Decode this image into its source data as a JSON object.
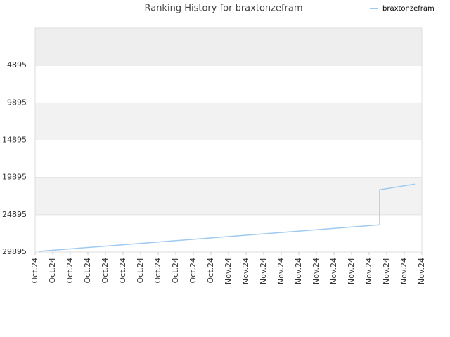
{
  "chart_data": {
    "type": "line",
    "title": "Ranking History for braxtonzefram",
    "x": [
      0.2,
      19.6,
      19.6,
      21.6
    ],
    "series": [
      {
        "name": "braxtonzefram",
        "color": "#9ec9f0",
        "values": [
          29800,
          26250,
          21550,
          20800
        ]
      }
    ],
    "xlim": [
      0,
      22
    ],
    "xticks": [
      {
        "value": 0,
        "label": "Oct.24"
      },
      {
        "value": 1,
        "label": "Oct.24"
      },
      {
        "value": 2,
        "label": "Oct.24"
      },
      {
        "value": 3,
        "label": "Oct.24"
      },
      {
        "value": 4,
        "label": "Oct.24"
      },
      {
        "value": 5,
        "label": "Oct.24"
      },
      {
        "value": 6,
        "label": "Oct.24"
      },
      {
        "value": 7,
        "label": "Oct.24"
      },
      {
        "value": 8,
        "label": "Oct.24"
      },
      {
        "value": 9,
        "label": "Oct.24"
      },
      {
        "value": 10,
        "label": "Oct.24"
      },
      {
        "value": 11,
        "label": "Nov.24"
      },
      {
        "value": 12,
        "label": "Nov.24"
      },
      {
        "value": 13,
        "label": "Nov.24"
      },
      {
        "value": 14,
        "label": "Nov.24"
      },
      {
        "value": 15,
        "label": "Nov.24"
      },
      {
        "value": 16,
        "label": "Nov.24"
      },
      {
        "value": 17,
        "label": "Nov.24"
      },
      {
        "value": 18,
        "label": "Nov.24"
      },
      {
        "value": 19,
        "label": "Nov.24"
      },
      {
        "value": 20,
        "label": "Nov.24"
      },
      {
        "value": 21,
        "label": "Nov.24"
      },
      {
        "value": 22,
        "label": "Nov.24"
      }
    ],
    "ylim": [
      29895,
      -105
    ],
    "yticks": [
      4895,
      9895,
      14895,
      19895,
      24895,
      29895
    ],
    "grid": true,
    "legend": "top-right"
  }
}
